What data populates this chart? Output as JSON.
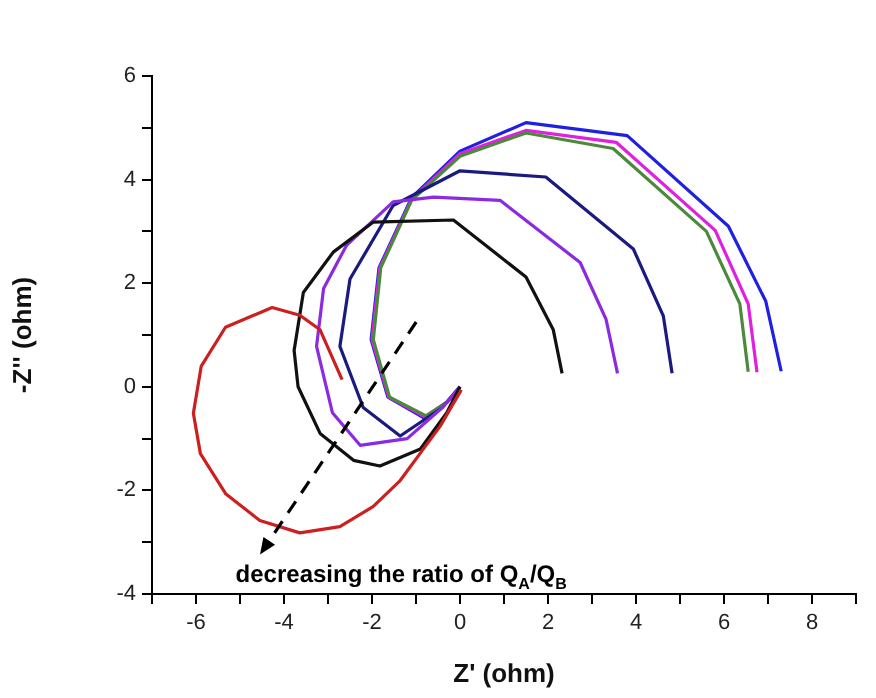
{
  "chart_data": {
    "type": "line",
    "xlabel": "Z' (ohm)",
    "ylabel": "-Z'' (ohm)",
    "annotations": [
      "decreasing the ratio of Q$_{A}$/Q$_{B}$"
    ],
    "xlim": [
      -7,
      9
    ],
    "xticks": [
      {
        "value": -7,
        "label": null
      },
      -6,
      {
        "value": -5,
        "label": null
      },
      -4,
      {
        "value": -3,
        "label": null
      },
      -2,
      {
        "value": -1,
        "label": null
      },
      0,
      {
        "value": 1,
        "label": null
      },
      2,
      {
        "value": 3,
        "label": null
      },
      4,
      {
        "value": 5,
        "label": null
      },
      6,
      {
        "value": 7,
        "label": null
      },
      8,
      {
        "value": 9,
        "label": null
      }
    ],
    "ylim": [
      -4,
      6
    ],
    "yticks": [
      -4,
      {
        "value": -3,
        "label": null
      },
      -2,
      {
        "value": -1,
        "label": null
      },
      0,
      {
        "value": 1,
        "label": null
      },
      2,
      {
        "value": 3,
        "label": null
      },
      4,
      {
        "value": 5,
        "label": null
      },
      6
    ],
    "grid": false,
    "legend": false,
    "marker": "none",
    "line_style": "solid",
    "series": [
      {
        "color": "#cc2020",
        "x": [
          0.03,
          -0.15,
          -0.45,
          -0.91,
          -1.36,
          -1.97,
          -2.73,
          -3.64,
          -4.55,
          -5.32,
          -5.9,
          -6.06,
          -5.88,
          -5.33,
          -4.27,
          -3.64,
          -3.18,
          -2.68
        ],
        "values": [
          -0.06,
          -0.32,
          -0.76,
          -1.29,
          -1.81,
          -2.31,
          -2.7,
          -2.82,
          -2.58,
          -2.07,
          -1.29,
          -0.51,
          0.4,
          1.15,
          1.53,
          1.38,
          1.1,
          0.14
        ]
      },
      {
        "color": "#111111",
        "x": [
          0,
          -0.3,
          -0.9,
          -1.82,
          -2.42,
          -3.18,
          -3.68,
          -3.77,
          -3.56,
          -2.88,
          -1.97,
          -0.15,
          1.5,
          2.12,
          2.32
        ],
        "values": [
          0,
          -0.5,
          -1.2,
          -1.53,
          -1.42,
          -0.9,
          0,
          0.7,
          1.82,
          2.6,
          3.18,
          3.22,
          2.12,
          1.1,
          0.26
        ]
      },
      {
        "color": "#8a2be2",
        "x": [
          0,
          -0.4,
          -1.2,
          -2.27,
          -2.9,
          -3.26,
          -3.1,
          -2.58,
          -1.52,
          -0.6,
          0.91,
          2.73,
          3.32,
          3.58
        ],
        "values": [
          0,
          -0.4,
          -1.0,
          -1.13,
          -0.5,
          0.78,
          1.9,
          2.73,
          3.57,
          3.66,
          3.6,
          2.4,
          1.3,
          0.26
        ]
      },
      {
        "color": "#1a1a80",
        "x": [
          0,
          -0.4,
          -1.36,
          -2.2,
          -2.73,
          -2.5,
          -1.52,
          0,
          1.95,
          3.94,
          4.62,
          4.82
        ],
        "values": [
          0,
          -0.4,
          -0.95,
          -0.4,
          0.78,
          2.08,
          3.5,
          4.17,
          4.05,
          2.66,
          1.37,
          0.26
        ]
      },
      {
        "color": "#4a8a3a",
        "x": [
          0,
          -0.3,
          -0.77,
          -1.6,
          -1.97,
          -1.8,
          -1.1,
          0,
          1.5,
          3.48,
          5.6,
          6.36,
          6.55
        ],
        "values": [
          0,
          -0.3,
          -0.56,
          -0.2,
          0.91,
          2.3,
          3.6,
          4.45,
          4.9,
          4.6,
          3.0,
          1.6,
          0.29
        ]
      },
      {
        "color": "#e020e0",
        "x": [
          0,
          -0.3,
          -0.8,
          -1.62,
          -2.0,
          -1.82,
          -1.1,
          0,
          1.5,
          3.55,
          5.8,
          6.55,
          6.75
        ],
        "values": [
          0,
          -0.3,
          -0.58,
          -0.2,
          0.91,
          2.3,
          3.62,
          4.5,
          4.95,
          4.72,
          3.02,
          1.6,
          0.28
        ]
      },
      {
        "color": "#2020e0",
        "x": [
          0,
          -0.3,
          -0.82,
          -1.64,
          -2.02,
          -1.84,
          -1.1,
          0,
          1.5,
          3.8,
          6.1,
          6.95,
          7.3
        ],
        "values": [
          0,
          -0.3,
          -0.6,
          -0.2,
          0.91,
          2.3,
          3.65,
          4.55,
          5.1,
          4.85,
          3.1,
          1.65,
          0.3
        ]
      }
    ]
  }
}
